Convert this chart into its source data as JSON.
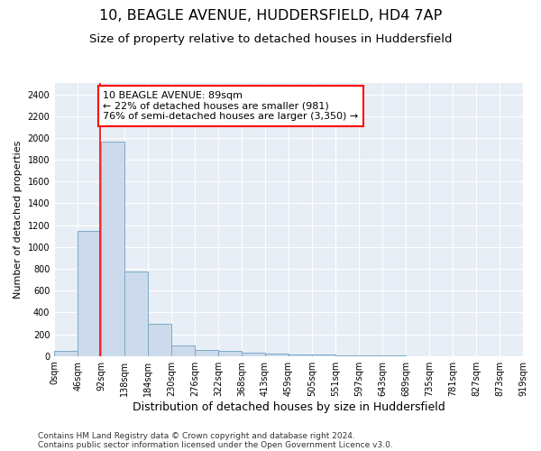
{
  "title_line1": "10, BEAGLE AVENUE, HUDDERSFIELD, HD4 7AP",
  "title_line2": "Size of property relative to detached houses in Huddersfield",
  "xlabel": "Distribution of detached houses by size in Huddersfield",
  "ylabel": "Number of detached properties",
  "bin_edges": [
    0,
    46,
    92,
    138,
    184,
    230,
    276,
    322,
    368,
    413,
    459,
    505,
    551,
    597,
    643,
    689,
    735,
    781,
    827,
    873,
    919
  ],
  "bin_labels": [
    "0sqm",
    "46sqm",
    "92sqm",
    "138sqm",
    "184sqm",
    "230sqm",
    "276sqm",
    "322sqm",
    "368sqm",
    "413sqm",
    "459sqm",
    "505sqm",
    "551sqm",
    "597sqm",
    "643sqm",
    "689sqm",
    "735sqm",
    "781sqm",
    "827sqm",
    "873sqm",
    "919sqm"
  ],
  "bar_heights": [
    50,
    1150,
    1970,
    775,
    295,
    100,
    55,
    45,
    30,
    20,
    15,
    10,
    5,
    2,
    2,
    1,
    0,
    0,
    0,
    0
  ],
  "bar_color": "#ccdaeb",
  "bar_edge_color": "#7aaac8",
  "bar_edge_width": 0.7,
  "red_line_x": 89,
  "red_line_color": "red",
  "annotation_line1": "10 BEAGLE AVENUE: 89sqm",
  "annotation_line2": "← 22% of detached houses are smaller (981)",
  "annotation_line3": "76% of semi-detached houses are larger (3,350) →",
  "ylim": [
    0,
    2500
  ],
  "yticks": [
    0,
    200,
    400,
    600,
    800,
    1000,
    1200,
    1400,
    1600,
    1800,
    2000,
    2200,
    2400
  ],
  "background_color": "#ffffff",
  "plot_bg_color": "#e8eef5",
  "grid_color": "#ffffff",
  "footer_line1": "Contains HM Land Registry data © Crown copyright and database right 2024.",
  "footer_line2": "Contains public sector information licensed under the Open Government Licence v3.0.",
  "title_fontsize": 11.5,
  "subtitle_fontsize": 9.5,
  "xlabel_fontsize": 9,
  "ylabel_fontsize": 8,
  "tick_fontsize": 7,
  "annotation_fontsize": 8,
  "footer_fontsize": 6.5
}
